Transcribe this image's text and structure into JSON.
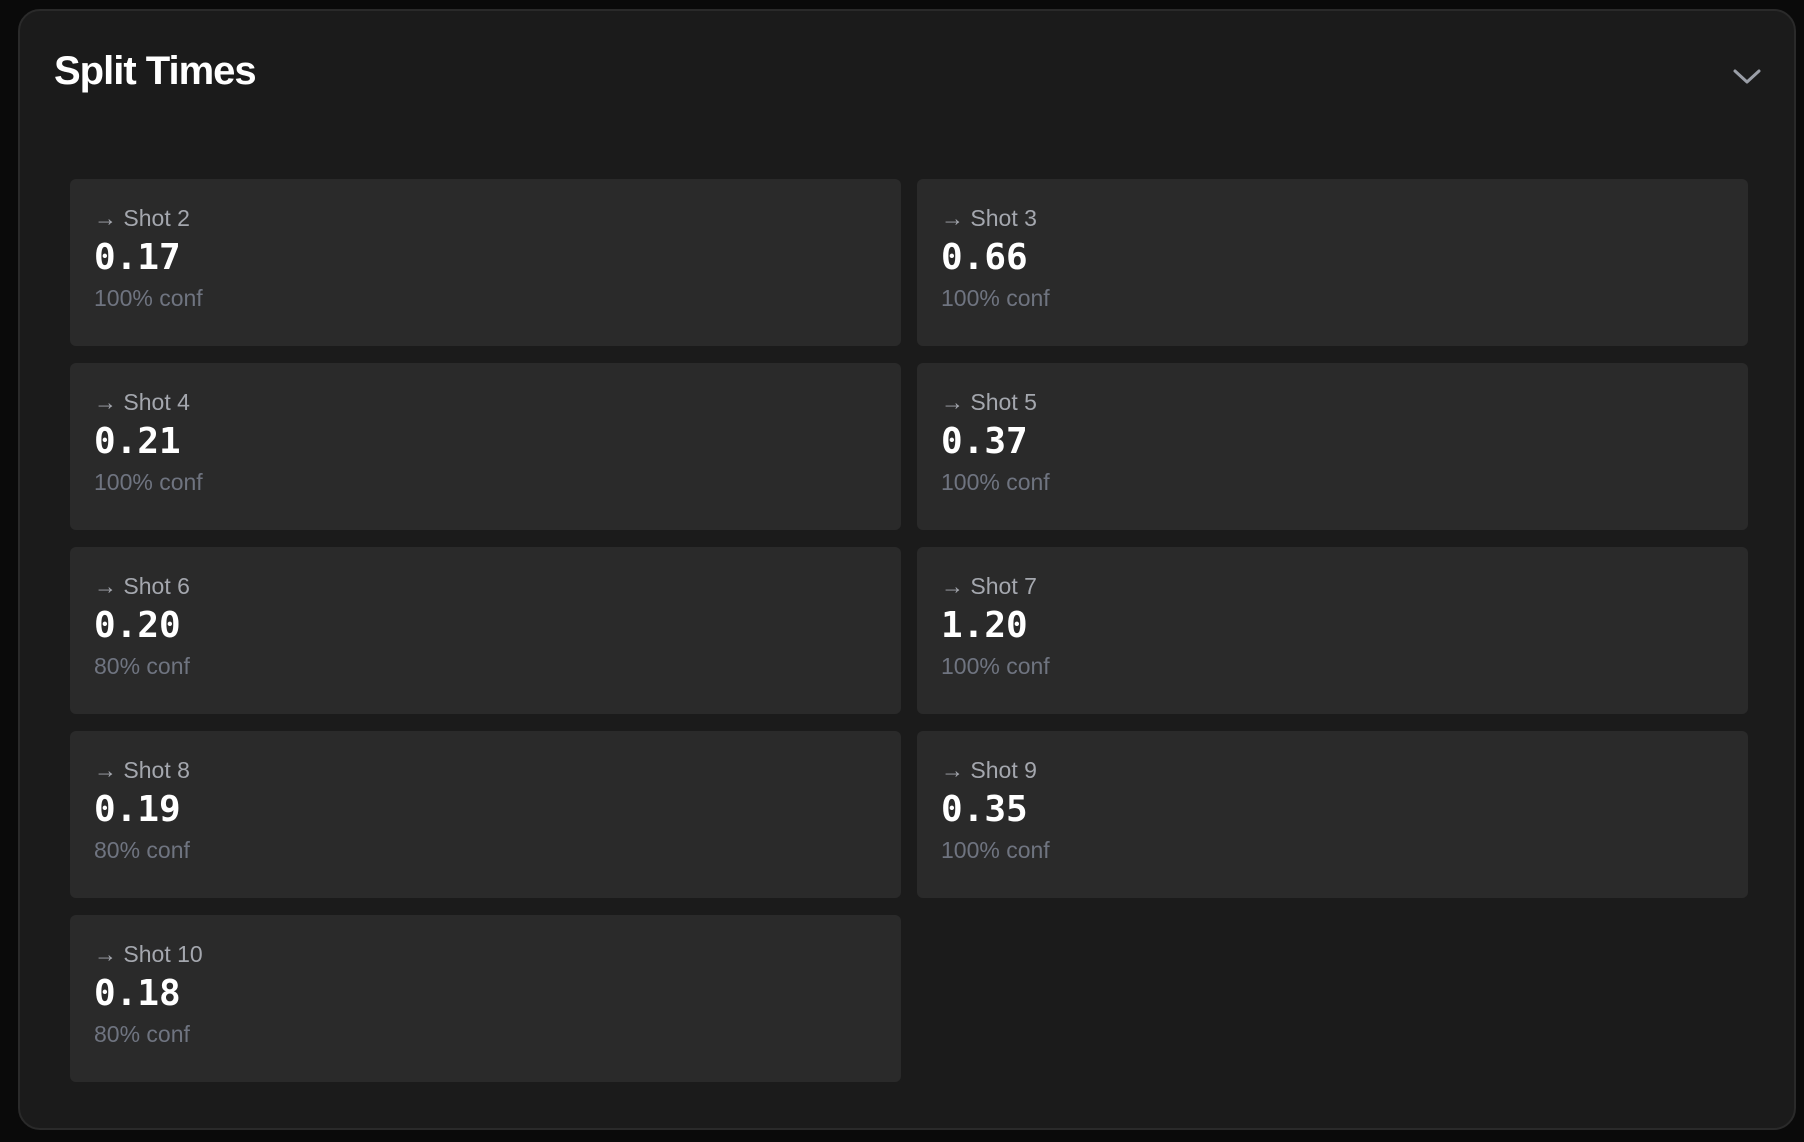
{
  "panel": {
    "title": "Split Times",
    "collapse_icon": "chevron-down-icon"
  },
  "splits": [
    {
      "label": "Shot 2",
      "value": "0.17",
      "conf": "100% conf"
    },
    {
      "label": "Shot 3",
      "value": "0.66",
      "conf": "100% conf"
    },
    {
      "label": "Shot 4",
      "value": "0.21",
      "conf": "100% conf"
    },
    {
      "label": "Shot 5",
      "value": "0.37",
      "conf": "100% conf"
    },
    {
      "label": "Shot 6",
      "value": "0.20",
      "conf": "80% conf"
    },
    {
      "label": "Shot 7",
      "value": "1.20",
      "conf": "100% conf"
    },
    {
      "label": "Shot 8",
      "value": "0.19",
      "conf": "80% conf"
    },
    {
      "label": "Shot 9",
      "value": "0.35",
      "conf": "100% conf"
    },
    {
      "label": "Shot 10",
      "value": "0.18",
      "conf": "80% conf"
    }
  ],
  "arrow": "→"
}
